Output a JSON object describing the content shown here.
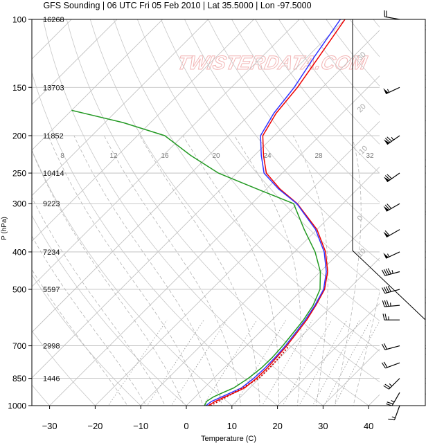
{
  "chart_data": {
    "type": "line",
    "title": "GFS Sounding | 06 UTC Fri 05 Feb 2010 | Lat 35.5000 | Lon -97.5000",
    "xlabel": "Temperature (C)",
    "ylabel": "P (hPa)",
    "xlim": [
      -35,
      46
    ],
    "ylim": [
      1000,
      100
    ],
    "yscale": "log",
    "x_ticks": [
      "−30",
      "−20",
      "−10",
      "0",
      "10",
      "20",
      "30",
      "40"
    ],
    "pressure_levels": [
      {
        "p": 100,
        "label": "100",
        "height": "16268"
      },
      {
        "p": 150,
        "label": "150",
        "height": "13703"
      },
      {
        "p": 200,
        "label": "200",
        "height": "11852"
      },
      {
        "p": 250,
        "label": "250",
        "height": "10414"
      },
      {
        "p": 300,
        "label": "300",
        "height": "9223"
      },
      {
        "p": 400,
        "label": "400",
        "height": "7234"
      },
      {
        "p": 500,
        "label": "500",
        "height": "5597"
      },
      {
        "p": 700,
        "label": "700",
        "height": "2998"
      },
      {
        "p": 850,
        "label": "850",
        "height": "1446"
      },
      {
        "p": 1000,
        "label": "1000",
        "height": ""
      }
    ],
    "mixing_ratio_labels": [
      "8",
      "12",
      "16",
      "20",
      "24",
      "28",
      "32"
    ],
    "watermark": "TWISTERDATA.COM",
    "series": [
      {
        "key": "virtual_temperature",
        "color": "#ee0000",
        "points": [
          [
            1000,
            4.8
          ],
          [
            975,
            5.4
          ],
          [
            950,
            6.5
          ],
          [
            925,
            7.8
          ],
          [
            900,
            8.9
          ],
          [
            850,
            9.4
          ],
          [
            800,
            9.5
          ],
          [
            750,
            9.2
          ],
          [
            700,
            8.9
          ],
          [
            650,
            8.3
          ],
          [
            600,
            7.6
          ],
          [
            550,
            6.4
          ],
          [
            500,
            4.8
          ],
          [
            450,
            1.6
          ],
          [
            400,
            -3.2
          ],
          [
            350,
            -10.0
          ],
          [
            300,
            -20.0
          ],
          [
            275,
            -27.0
          ],
          [
            250,
            -33.5
          ],
          [
            225,
            -38.0
          ],
          [
            200,
            -42.5
          ],
          [
            175,
            -44.5
          ],
          [
            150,
            -45.5
          ],
          [
            125,
            -47.5
          ],
          [
            100,
            -50.0
          ]
        ]
      },
      {
        "key": "temperature",
        "color": "#3333ff",
        "points": [
          [
            1000,
            4.3
          ],
          [
            975,
            4.6
          ],
          [
            950,
            5.8
          ],
          [
            925,
            7.0
          ],
          [
            900,
            8.2
          ],
          [
            850,
            8.8
          ],
          [
            800,
            9.0
          ],
          [
            750,
            8.9
          ],
          [
            700,
            8.6
          ],
          [
            650,
            8.0
          ],
          [
            600,
            7.3
          ],
          [
            550,
            6.2
          ],
          [
            500,
            4.6
          ],
          [
            450,
            1.3
          ],
          [
            400,
            -3.5
          ],
          [
            350,
            -10.3
          ],
          [
            300,
            -20.1
          ],
          [
            275,
            -27.3
          ],
          [
            250,
            -34.0
          ],
          [
            225,
            -38.5
          ],
          [
            200,
            -43.0
          ],
          [
            175,
            -45.0
          ],
          [
            150,
            -46.2
          ],
          [
            125,
            -48.5
          ],
          [
            100,
            -51.0
          ]
        ]
      },
      {
        "key": "dewpoint",
        "color": "#229922",
        "points": [
          [
            1000,
            4.0
          ],
          [
            975,
            3.5
          ],
          [
            950,
            4.0
          ],
          [
            925,
            5.2
          ],
          [
            900,
            6.5
          ],
          [
            850,
            7.6
          ],
          [
            800,
            8.2
          ],
          [
            750,
            8.3
          ],
          [
            700,
            8.0
          ],
          [
            650,
            7.5
          ],
          [
            600,
            6.9
          ],
          [
            550,
            5.8
          ],
          [
            500,
            3.8
          ],
          [
            450,
            0.0
          ],
          [
            400,
            -5.5
          ],
          [
            350,
            -12.8
          ],
          [
            300,
            -20.8
          ],
          [
            275,
            -32.0
          ],
          [
            250,
            -44.0
          ],
          [
            225,
            -54.0
          ],
          [
            200,
            -64.0
          ],
          [
            185,
            -76.0
          ],
          [
            172,
            -90.0
          ]
        ]
      },
      {
        "key": "parcel",
        "color": "#cc0000",
        "points": [
          [
            1000,
            5.3
          ],
          [
            950,
            6.9
          ],
          [
            900,
            8.4
          ],
          [
            850,
            9.9
          ],
          [
            800,
            10.0
          ],
          [
            750,
            9.8
          ],
          [
            700,
            9.4
          ]
        ]
      }
    ],
    "wind_barbs": [
      {
        "p": 1000,
        "dir": 200,
        "speed": 15
      },
      {
        "p": 925,
        "dir": 210,
        "speed": 25
      },
      {
        "p": 850,
        "dir": 225,
        "speed": 25
      },
      {
        "p": 775,
        "dir": 250,
        "speed": 20
      },
      {
        "p": 700,
        "dir": 255,
        "speed": 20
      },
      {
        "p": 600,
        "dir": 270,
        "speed": 25
      },
      {
        "p": 550,
        "dir": 265,
        "speed": 35
      },
      {
        "p": 500,
        "dir": 255,
        "speed": 40
      },
      {
        "p": 450,
        "dir": 255,
        "speed": 45
      },
      {
        "p": 400,
        "dir": 245,
        "speed": 55
      },
      {
        "p": 350,
        "dir": 240,
        "speed": 60
      },
      {
        "p": 300,
        "dir": 240,
        "speed": 70
      },
      {
        "p": 250,
        "dir": 235,
        "speed": 70
      },
      {
        "p": 200,
        "dir": 235,
        "speed": 75
      },
      {
        "p": 150,
        "dir": 245,
        "speed": 55
      },
      {
        "p": 100,
        "dir": 280,
        "speed": 20
      }
    ]
  }
}
